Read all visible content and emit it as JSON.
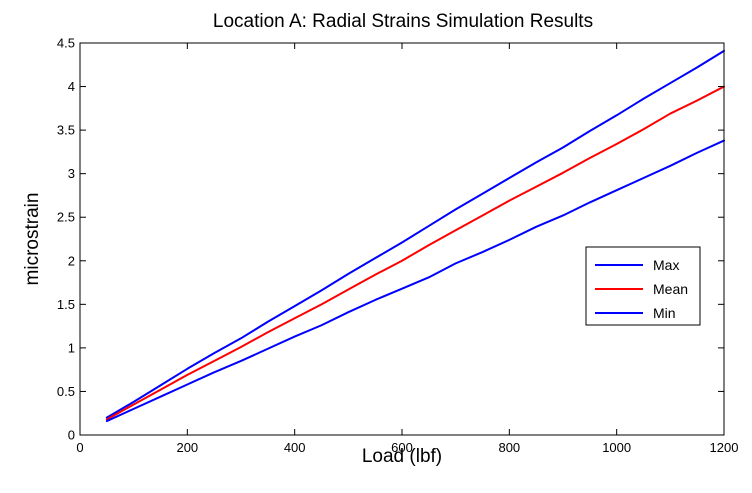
{
  "chart_data": {
    "type": "line",
    "title": "Location A: Radial Strains Simulation Results",
    "xlabel": "Load (lbf)",
    "ylabel": "microstrain",
    "xlim": [
      0,
      1200
    ],
    "ylim": [
      0,
      4.5
    ],
    "xticks": [
      0,
      200,
      400,
      600,
      800,
      1000,
      1200
    ],
    "xtick_labels": [
      "0",
      "200",
      "400",
      "600",
      "800",
      "1000",
      "1200"
    ],
    "yticks": [
      0,
      0.5,
      1,
      1.5,
      2,
      2.5,
      3,
      3.5,
      4,
      4.5
    ],
    "ytick_labels": [
      "0",
      "0.5",
      "1",
      "1.5",
      "2",
      "2.5",
      "3",
      "3.5",
      "4",
      "4.5"
    ],
    "grid": false,
    "legend_position": "right",
    "x": [
      50,
      100,
      150,
      200,
      250,
      300,
      350,
      400,
      450,
      500,
      550,
      600,
      650,
      700,
      750,
      800,
      850,
      900,
      950,
      1000,
      1050,
      1100,
      1150,
      1200
    ],
    "series": [
      {
        "name": "Max",
        "color": "#0000ff",
        "values": [
          0.2,
          0.38,
          0.57,
          0.76,
          0.94,
          1.11,
          1.3,
          1.48,
          1.66,
          1.85,
          2.03,
          2.21,
          2.4,
          2.59,
          2.77,
          2.95,
          3.13,
          3.3,
          3.49,
          3.67,
          3.86,
          4.04,
          4.22,
          4.41
        ]
      },
      {
        "name": "Mean",
        "color": "#ff0000",
        "values": [
          0.18,
          0.35,
          0.52,
          0.69,
          0.85,
          1.01,
          1.18,
          1.34,
          1.5,
          1.67,
          1.84,
          2.0,
          2.18,
          2.35,
          2.52,
          2.69,
          2.85,
          3.01,
          3.18,
          3.34,
          3.51,
          3.69,
          3.84,
          4.0
        ]
      },
      {
        "name": "Min",
        "color": "#0000ff",
        "values": [
          0.16,
          0.3,
          0.44,
          0.58,
          0.72,
          0.85,
          0.99,
          1.13,
          1.26,
          1.41,
          1.55,
          1.68,
          1.81,
          1.97,
          2.1,
          2.24,
          2.39,
          2.52,
          2.67,
          2.81,
          2.95,
          3.09,
          3.24,
          3.38
        ]
      }
    ]
  }
}
